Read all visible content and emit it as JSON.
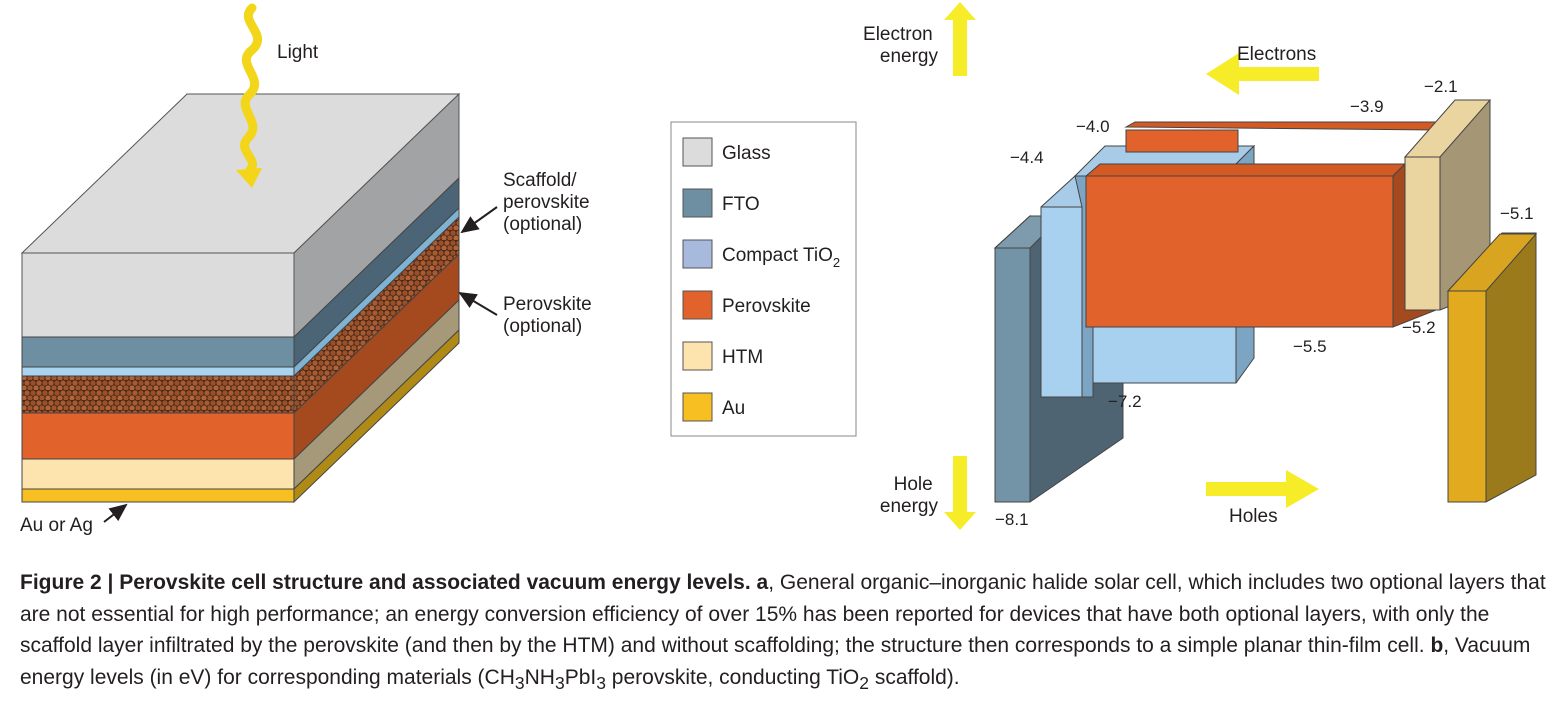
{
  "panel_a": {
    "light_label": "Light",
    "scaffold_label": [
      "Scaffold/",
      "perovskite",
      "(optional)"
    ],
    "perovskite_label": [
      "Perovskite",
      "(optional)"
    ],
    "au_label": "Au or Ag"
  },
  "legend": {
    "items": [
      {
        "text": "Glass",
        "color": "#dcdcdc"
      },
      {
        "text": "FTO",
        "color": "#6e8ea1"
      },
      {
        "text": "Compact TiO",
        "sub": "2",
        "color": "#a8b9de"
      },
      {
        "text": "Perovskite",
        "color": "#e2622b"
      },
      {
        "text": "HTM",
        "color": "#fde3ad"
      },
      {
        "text": "Au",
        "color": "#f7bf22"
      }
    ]
  },
  "panel_b": {
    "electron_energy": [
      "Electron",
      "energy"
    ],
    "hole_energy": [
      "Hole",
      "energy"
    ],
    "electrons": "Electrons",
    "holes": "Holes",
    "levels": {
      "fto": "−4.4",
      "fto_bottom": "−8.1",
      "tio2_bottom": "−7.2",
      "perov_top": "−4.0",
      "perov_top2": "−3.9",
      "perov_bottom": "−5.5",
      "htm_top": "−2.1",
      "htm_bottom": "−5.2",
      "au": "−5.1"
    }
  },
  "caption": {
    "fig": "Figure 2 | Perovskite cell structure and associated vacuum energy levels.",
    "a": "a",
    "a_text_1": ", General organic–inorganic halide solar cell, which includes two optional layers that are not essential for high performance; an energy conversion efficiency of over 15% has been reported for devices that have both optional layers, with only the scaffold layer infiltrated by the perovskite (and then by the HTM) and without scaffolding; the structure then corresponds to a simple planar thin-film cell. ",
    "b": "b",
    "b_1": ", Vacuum energy levels (in eV) for corresponding materials (CH",
    "sub3a": "3",
    "b_2": "NH",
    "sub3b": "3",
    "b_3": "PbI",
    "sub3c": "3",
    "b_4": " perovskite, conducting TiO",
    "sub2": "2",
    "b_5": " scaffold)."
  }
}
